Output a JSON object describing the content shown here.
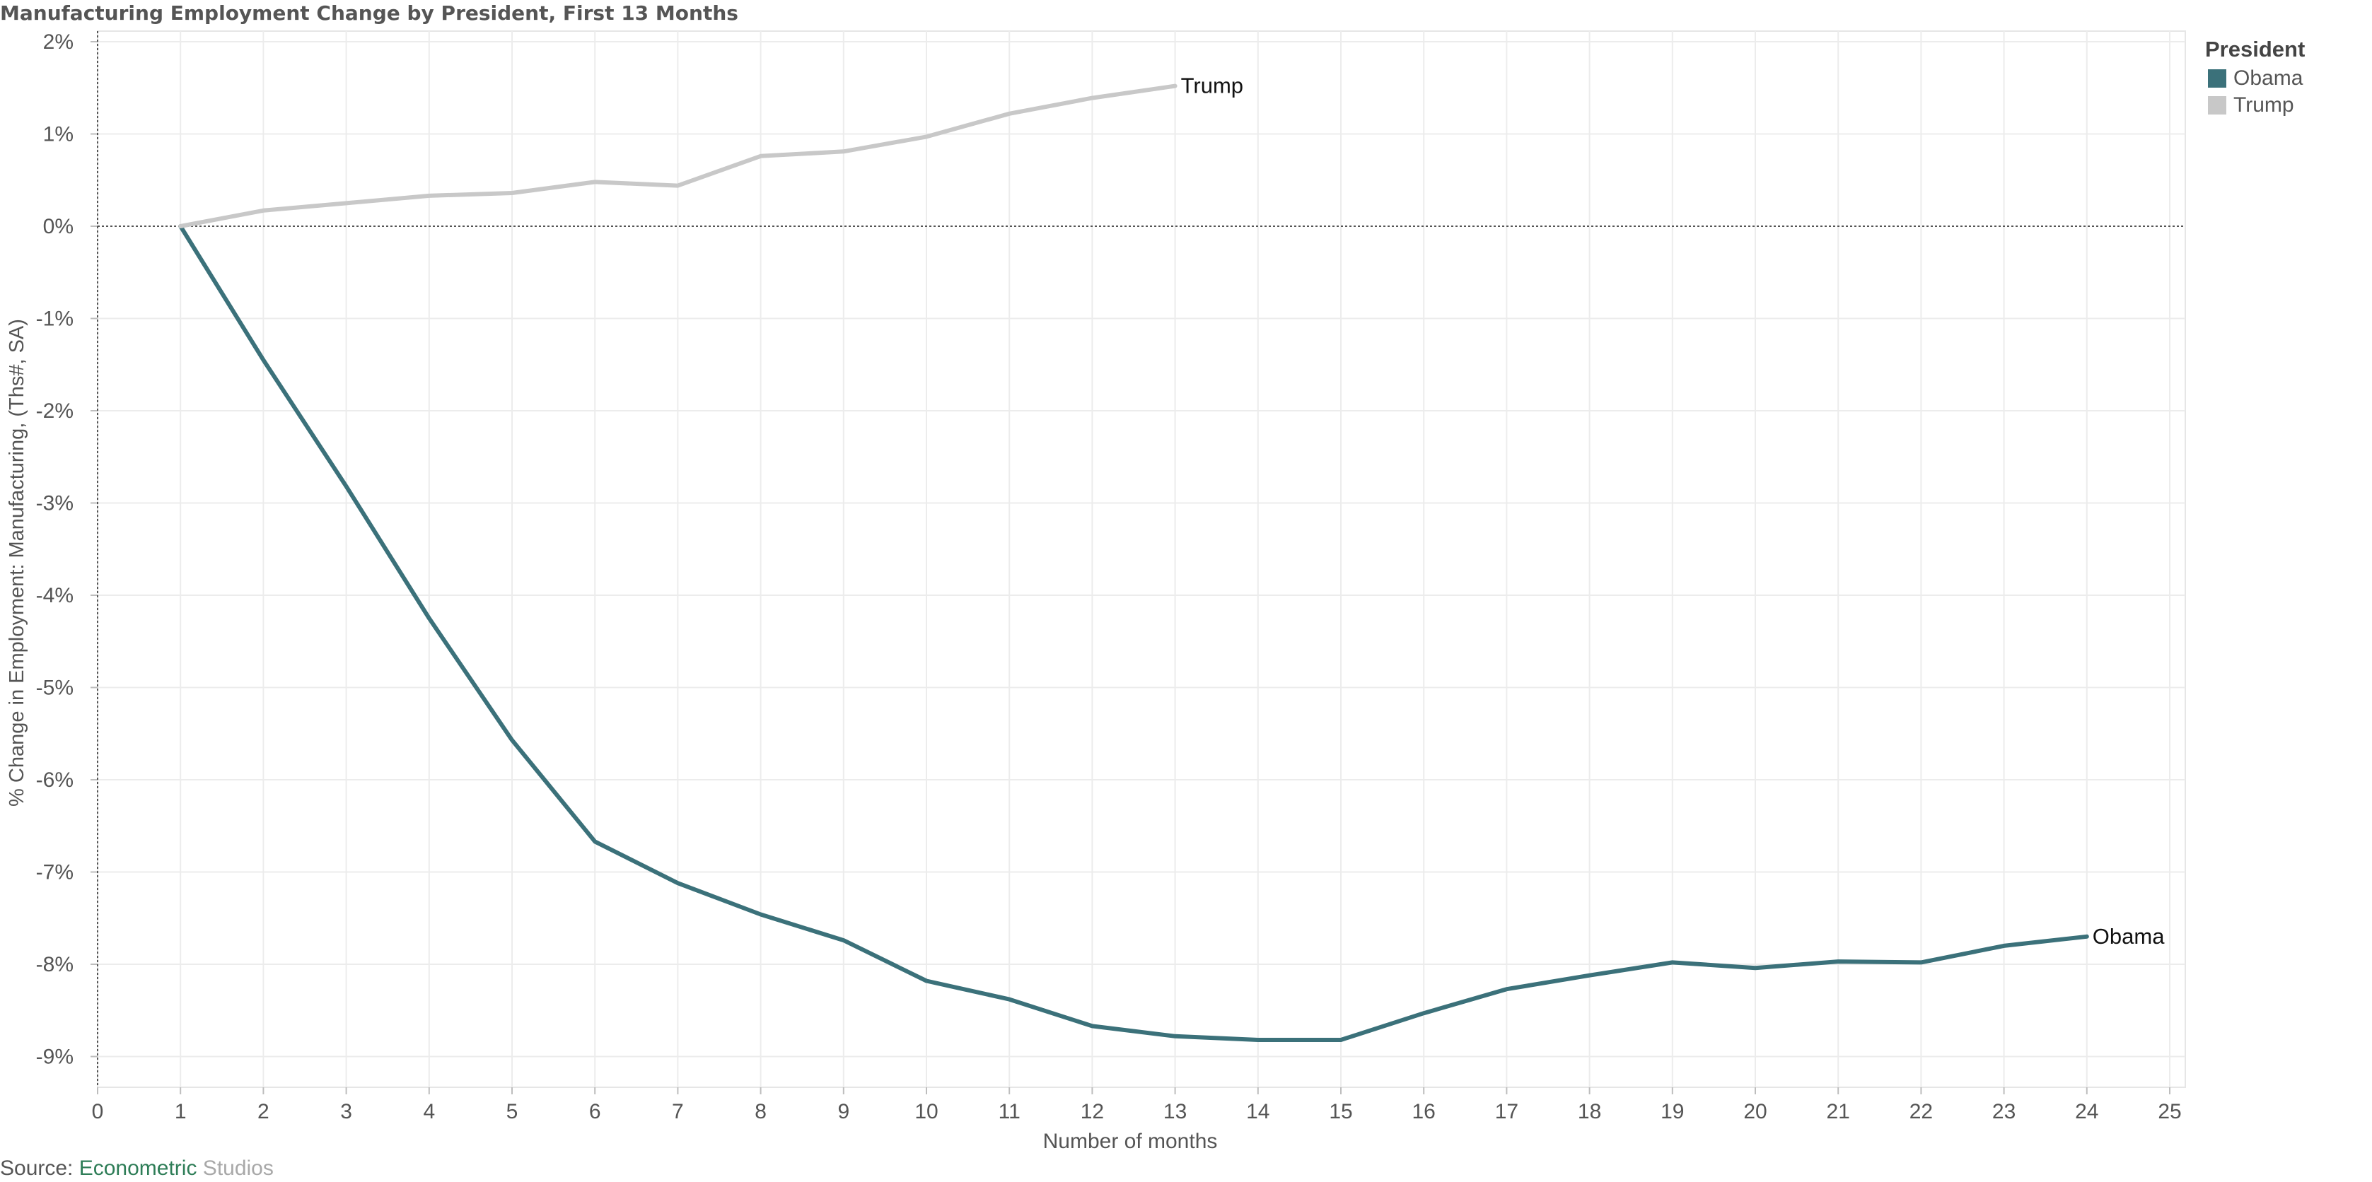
{
  "chart_data": {
    "type": "line",
    "title": "Manufacturing Employment Change by President, First 13 Months",
    "xlabel": "Number of months",
    "ylabel": "% Change in Employment: Manufacturing, (Ths#, SA)",
    "xlim": [
      0,
      25
    ],
    "ylim": [
      -9.0,
      2.0
    ],
    "x_ticks": [
      "0",
      "1",
      "2",
      "3",
      "4",
      "5",
      "6",
      "7",
      "8",
      "9",
      "10",
      "11",
      "12",
      "13",
      "14",
      "15",
      "16",
      "17",
      "18",
      "19",
      "20",
      "21",
      "22",
      "23",
      "24",
      "25"
    ],
    "y_ticks": [
      "2%",
      "1%",
      "0%",
      "-1%",
      "-2%",
      "-3%",
      "-4%",
      "-5%",
      "-6%",
      "-7%",
      "-8%",
      "-9%"
    ],
    "grid": true,
    "legend_position": "top-right",
    "legend_title": "President",
    "series": [
      {
        "name": "Obama",
        "color": "#3b717a",
        "end_label": "Obama",
        "x": [
          1,
          2,
          3,
          4,
          5,
          6,
          7,
          8,
          9,
          10,
          11,
          12,
          13,
          14,
          15,
          16,
          17,
          18,
          19,
          20,
          21,
          22,
          23,
          24
        ],
        "y": [
          0.0,
          -1.45,
          -2.82,
          -4.25,
          -5.57,
          -6.67,
          -7.12,
          -7.46,
          -7.74,
          -8.18,
          -8.38,
          -8.67,
          -8.78,
          -8.82,
          -8.82,
          -8.53,
          -8.27,
          -8.12,
          -7.98,
          -8.04,
          -7.97,
          -7.98,
          -7.8,
          -7.7
        ]
      },
      {
        "name": "Trump",
        "color": "#c8c8c8",
        "end_label": "Trump",
        "x": [
          1,
          2,
          3,
          4,
          5,
          6,
          7,
          8,
          9,
          10,
          11,
          12,
          13
        ],
        "y": [
          0.0,
          0.17,
          0.25,
          0.33,
          0.36,
          0.48,
          0.44,
          0.76,
          0.81,
          0.97,
          1.22,
          1.39,
          1.52
        ]
      }
    ]
  },
  "source": {
    "prefix": "Source: ",
    "brand_part1": "Econometric",
    "brand_part2": " Studios"
  }
}
